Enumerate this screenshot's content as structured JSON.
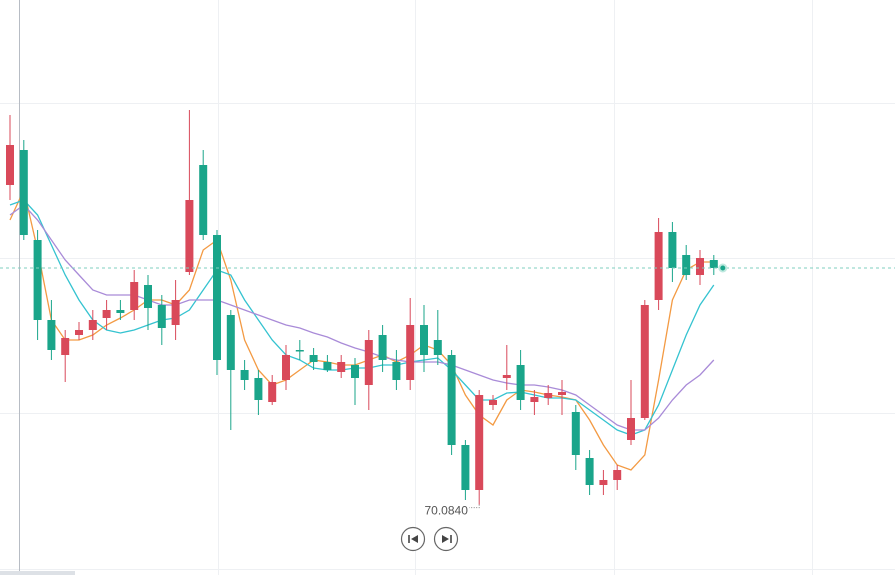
{
  "chart_data": {
    "type": "candlestick",
    "ylim": [
      69.38,
      75.13
    ],
    "up_color": "#d9495a",
    "down_color": "#1aa58a",
    "open": [
      73.28,
      73.63,
      72.73,
      71.93,
      71.58,
      71.78,
      71.83,
      71.95,
      72.03,
      72.03,
      72.28,
      72.08,
      71.88,
      72.41,
      73.48,
      72.78,
      71.98,
      71.43,
      71.35,
      71.11,
      71.33,
      71.63,
      71.58,
      71.51,
      71.41,
      71.48,
      71.28,
      71.78,
      71.51,
      71.33,
      71.88,
      71.73,
      71.58,
      70.68,
      70.23,
      71.08,
      71.35,
      71.48,
      71.11,
      71.15,
      71.18,
      71.01,
      70.55,
      70.28,
      70.33,
      70.73,
      70.95,
      72.13,
      72.81,
      72.58,
      72.38,
      72.53
    ],
    "high": [
      73.98,
      73.73,
      72.83,
      72.13,
      71.83,
      71.91,
      72.03,
      72.13,
      72.13,
      72.43,
      72.38,
      72.18,
      72.33,
      74.03,
      73.63,
      72.83,
      72.03,
      71.53,
      71.43,
      71.38,
      71.68,
      71.73,
      71.65,
      71.58,
      71.58,
      71.55,
      71.83,
      71.88,
      71.63,
      72.15,
      72.08,
      72.03,
      71.63,
      70.73,
      71.23,
      71.18,
      71.68,
      71.63,
      71.23,
      71.28,
      71.33,
      71.08,
      70.63,
      70.43,
      70.48,
      71.33,
      72.13,
      72.95,
      72.91,
      72.68,
      72.63,
      72.58
    ],
    "low": [
      73.13,
      72.73,
      71.73,
      71.53,
      71.31,
      71.73,
      71.73,
      71.83,
      71.93,
      71.93,
      71.83,
      71.68,
      71.73,
      72.38,
      72.73,
      71.38,
      70.83,
      71.23,
      70.98,
      71.08,
      71.23,
      71.53,
      71.43,
      71.41,
      71.35,
      71.08,
      71.03,
      71.41,
      71.23,
      71.23,
      71.41,
      71.48,
      70.58,
      70.13,
      70.084,
      71.03,
      71.23,
      71.03,
      70.98,
      71.08,
      70.98,
      70.43,
      70.18,
      70.18,
      70.23,
      70.68,
      70.93,
      72.03,
      72.31,
      72.33,
      72.28,
      72.38
    ],
    "close": [
      73.68,
      72.78,
      71.93,
      71.63,
      71.75,
      71.83,
      71.93,
      72.03,
      72.0,
      72.31,
      72.05,
      71.85,
      72.13,
      73.13,
      72.78,
      71.53,
      71.43,
      71.33,
      71.13,
      71.31,
      71.58,
      71.62,
      71.51,
      71.43,
      71.51,
      71.35,
      71.73,
      71.53,
      71.33,
      71.88,
      71.58,
      71.58,
      70.68,
      70.23,
      71.18,
      71.13,
      71.38,
      71.13,
      71.16,
      71.2,
      71.21,
      70.58,
      70.28,
      70.33,
      70.43,
      70.95,
      72.08,
      72.81,
      72.45,
      72.38,
      72.55,
      72.45
    ],
    "series": [
      {
        "color": "#f39a43",
        "values": [
          72.93,
          73.23,
          72.63,
          71.93,
          71.73,
          71.73,
          71.78,
          71.88,
          71.95,
          72.03,
          72.13,
          72.13,
          72.08,
          72.23,
          72.63,
          72.73,
          72.33,
          71.73,
          71.43,
          71.28,
          71.33,
          71.43,
          71.53,
          71.51,
          71.48,
          71.48,
          71.53,
          71.58,
          71.51,
          71.58,
          71.68,
          71.63,
          71.48,
          71.18,
          70.98,
          70.88,
          71.13,
          71.23,
          71.21,
          71.18,
          71.16,
          71.13,
          70.93,
          70.68,
          70.48,
          70.43,
          70.58,
          71.33,
          72.13,
          72.43,
          72.51,
          72.51
        ]
      },
      {
        "color": "#35c3d0",
        "values": [
          73.08,
          73.13,
          72.98,
          72.68,
          72.38,
          72.13,
          71.93,
          71.83,
          71.8,
          71.83,
          71.88,
          71.93,
          71.95,
          72.03,
          72.23,
          72.43,
          72.38,
          72.13,
          71.93,
          71.73,
          71.58,
          71.53,
          71.45,
          71.43,
          71.43,
          71.45,
          71.45,
          71.48,
          71.48,
          71.51,
          71.53,
          71.55,
          71.43,
          71.28,
          71.13,
          71.13,
          71.2,
          71.21,
          71.18,
          71.15,
          71.15,
          71.13,
          71.03,
          70.93,
          70.83,
          70.78,
          70.83,
          71.08,
          71.43,
          71.78,
          72.08,
          72.28
        ]
      },
      {
        "color": "#a98bd8",
        "values": [
          72.98,
          73.08,
          72.93,
          72.73,
          72.53,
          72.38,
          72.23,
          72.18,
          72.18,
          72.18,
          72.13,
          72.08,
          72.08,
          72.13,
          72.13,
          72.13,
          72.08,
          72.03,
          71.98,
          71.93,
          71.88,
          71.85,
          71.8,
          71.76,
          71.7,
          71.65,
          71.61,
          71.56,
          71.53,
          71.51,
          71.51,
          71.51,
          71.48,
          71.43,
          71.38,
          71.33,
          71.3,
          71.28,
          71.28,
          71.26,
          71.23,
          71.18,
          71.08,
          70.98,
          70.88,
          70.83,
          70.83,
          70.95,
          71.13,
          71.28,
          71.38,
          71.53
        ]
      }
    ],
    "low_label": "70.0840"
  }
}
